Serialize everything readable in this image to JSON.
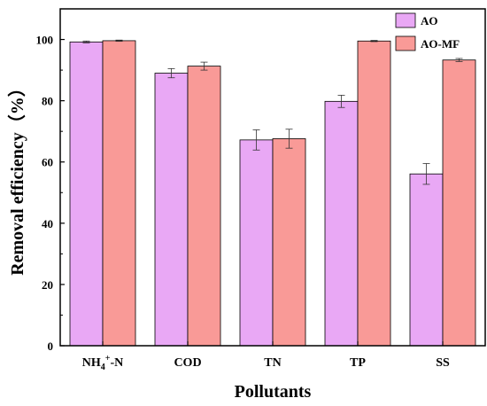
{
  "chart_data": {
    "type": "bar",
    "xlabel": "Pollutants",
    "ylabel": "Removal efficiency（%）",
    "ylim": [
      0,
      110
    ],
    "yticks": [
      0,
      20,
      40,
      60,
      80,
      100
    ],
    "categories": [
      "NH4+-N",
      "COD",
      "TN",
      "TP",
      "SS"
    ],
    "category_labels": [
      {
        "base": "NH",
        "sub": "4",
        "sup": "+",
        "rest": "-N"
      },
      {
        "base": "COD",
        "sub": "",
        "sup": "",
        "rest": ""
      },
      {
        "base": "TN",
        "sub": "",
        "sup": "",
        "rest": ""
      },
      {
        "base": "TP",
        "sub": "",
        "sup": "",
        "rest": ""
      },
      {
        "base": "SS",
        "sub": "",
        "sup": "",
        "rest": ""
      }
    ],
    "series": [
      {
        "name": "AO",
        "color": "#e9a8f5",
        "values": [
          99.2,
          89.0,
          67.2,
          79.8,
          56.1
        ],
        "errors": [
          0.3,
          1.5,
          3.3,
          2.0,
          3.4
        ]
      },
      {
        "name": "AO-MF",
        "color": "#f99a97",
        "values": [
          99.6,
          91.3,
          67.6,
          99.5,
          93.3
        ],
        "errors": [
          0.2,
          1.3,
          3.1,
          0.2,
          0.5
        ]
      }
    ],
    "grid": false,
    "legend_position": "top-right"
  }
}
